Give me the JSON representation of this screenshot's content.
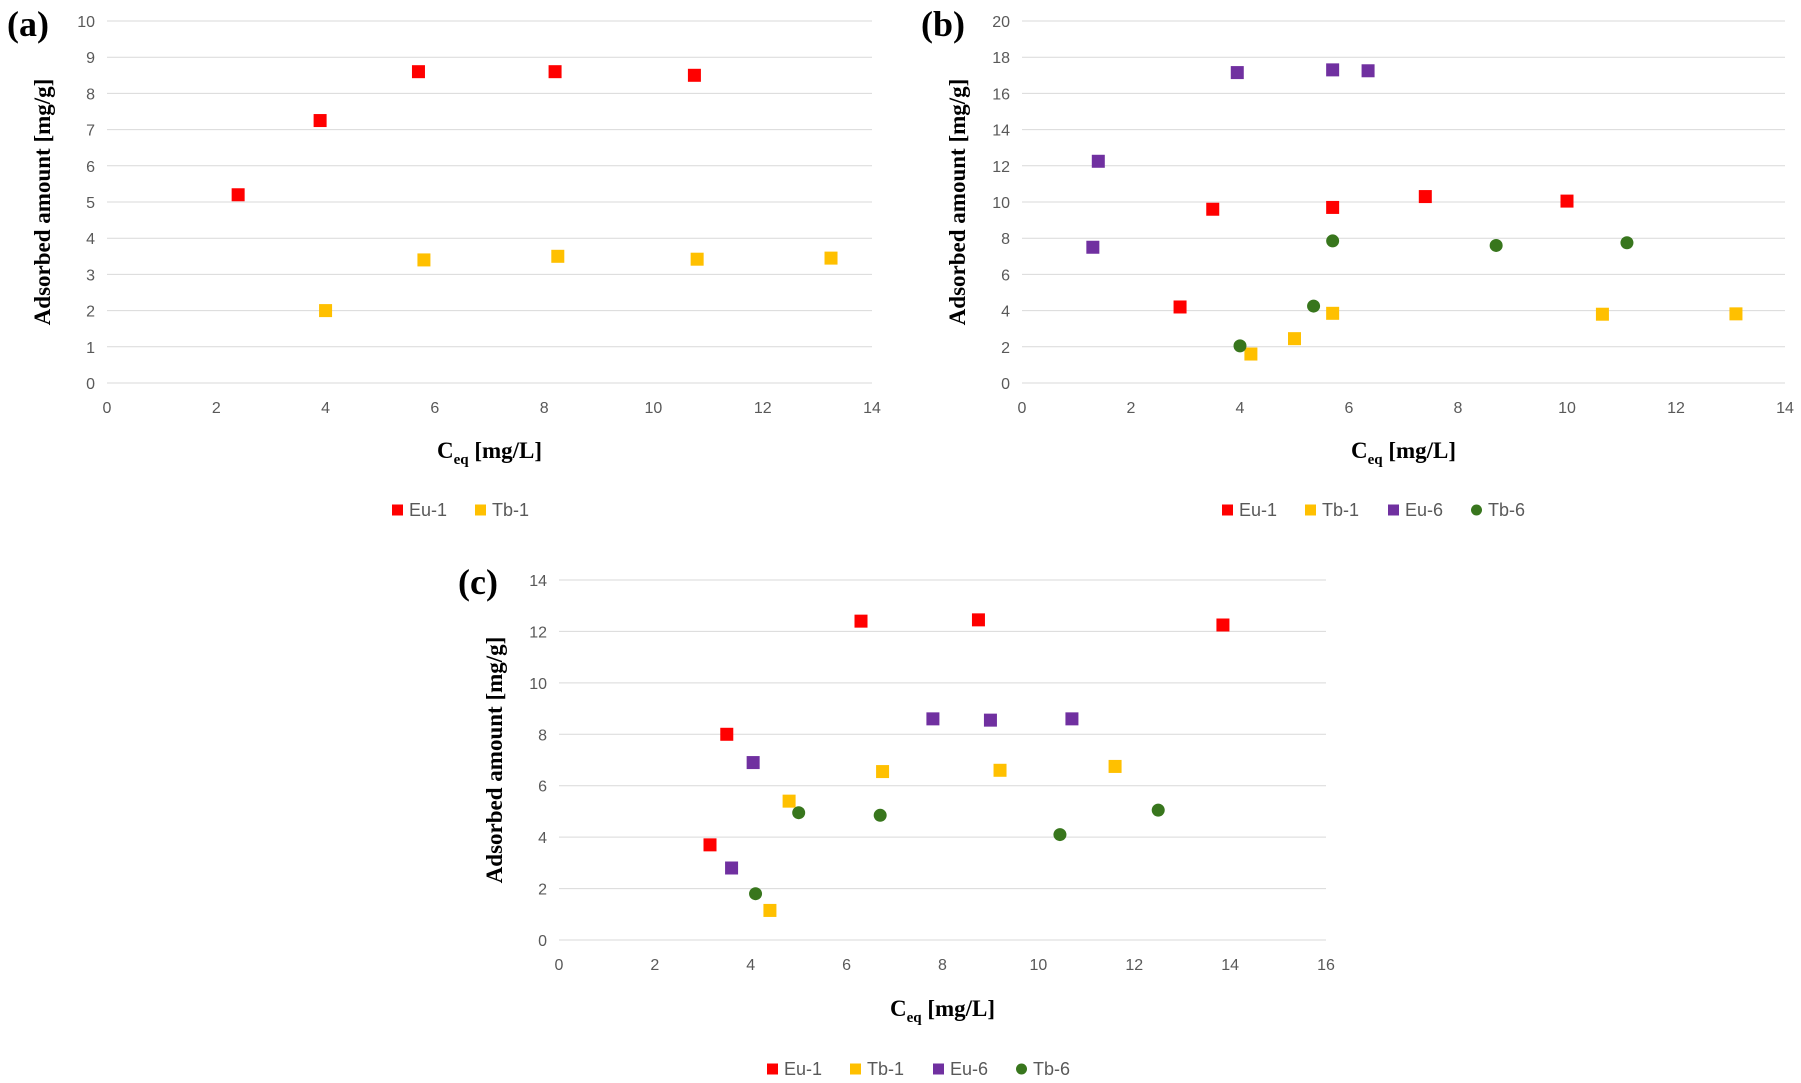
{
  "colors": {
    "Eu-1": "#ff0000",
    "Tb-1": "#ffc000",
    "Eu-6": "#7030a0",
    "Tb-6": "#38761d"
  },
  "chart_data": [
    {
      "type": "scatter",
      "panel_label": "(a)",
      "title": "",
      "xlabel": "C",
      "xlabel_sub": "eq",
      "xlabel_tail": " [mg/L]",
      "ylabel": "Adsorbed amount [mg/g]",
      "xlim": [
        0,
        14
      ],
      "ylim": [
        0,
        10
      ],
      "xticks": [
        "0",
        "2",
        "4",
        "6",
        "8",
        "10",
        "12",
        "14"
      ],
      "yticks": [
        "0",
        "1",
        "2",
        "3",
        "4",
        "5",
        "6",
        "7",
        "8",
        "9",
        "10"
      ],
      "grid": true,
      "legend_position": "bottom",
      "legend": [
        "Eu-1",
        "Tb-1"
      ],
      "series": [
        {
          "name": "Eu-1",
          "marker": "square",
          "x": [
            2.4,
            3.9,
            5.7,
            8.2,
            10.75
          ],
          "y": [
            5.2,
            7.25,
            8.6,
            8.6,
            8.5
          ]
        },
        {
          "name": "Tb-1",
          "marker": "square",
          "x": [
            4.0,
            5.8,
            8.25,
            10.8,
            13.25
          ],
          "y": [
            2.0,
            3.4,
            3.5,
            3.42,
            3.45
          ]
        }
      ]
    },
    {
      "type": "scatter",
      "panel_label": "(b)",
      "title": "",
      "xlabel": "C",
      "xlabel_sub": "eq",
      "xlabel_tail": " [mg/L]",
      "ylabel": "Adsorbed amount [mg/g]",
      "xlim": [
        0,
        14
      ],
      "ylim": [
        0,
        20
      ],
      "xticks": [
        "0",
        "2",
        "4",
        "6",
        "8",
        "10",
        "12",
        "14"
      ],
      "yticks": [
        "0",
        "2",
        "4",
        "6",
        "8",
        "10",
        "12",
        "14",
        "16",
        "18",
        "20"
      ],
      "grid": true,
      "legend_position": "bottom",
      "legend": [
        "Eu-1",
        "Tb-1",
        "Eu-6",
        "Tb-6"
      ],
      "series": [
        {
          "name": "Eu-1",
          "marker": "square",
          "x": [
            2.9,
            3.5,
            5.7,
            7.4,
            10.0
          ],
          "y": [
            4.2,
            9.6,
            9.7,
            10.3,
            10.05
          ]
        },
        {
          "name": "Tb-1",
          "marker": "square",
          "x": [
            4.2,
            5.0,
            5.7,
            10.65,
            13.1
          ],
          "y": [
            1.6,
            2.45,
            3.85,
            3.8,
            3.82
          ]
        },
        {
          "name": "Eu-6",
          "marker": "square",
          "x": [
            1.3,
            1.4,
            3.95,
            5.7,
            6.35
          ],
          "y": [
            7.5,
            12.25,
            17.15,
            17.3,
            17.25
          ]
        },
        {
          "name": "Tb-6",
          "marker": "circle",
          "x": [
            4.0,
            5.35,
            5.7,
            8.7,
            11.1
          ],
          "y": [
            2.05,
            4.25,
            7.85,
            7.6,
            7.75
          ]
        }
      ]
    },
    {
      "type": "scatter",
      "panel_label": "(c)",
      "title": "",
      "xlabel": "C",
      "xlabel_sub": "eq",
      "xlabel_tail": " [mg/L]",
      "ylabel": "Adsorbed amount [mg/g]",
      "xlim": [
        0,
        16
      ],
      "ylim": [
        0,
        14
      ],
      "xticks": [
        "0",
        "2",
        "4",
        "6",
        "8",
        "10",
        "12",
        "14",
        "16"
      ],
      "yticks": [
        "0",
        "2",
        "4",
        "6",
        "8",
        "10",
        "12",
        "14"
      ],
      "grid": true,
      "legend_position": "bottom",
      "legend": [
        "Eu-1",
        "Tb-1",
        "Eu-6",
        "Tb-6"
      ],
      "series": [
        {
          "name": "Eu-1",
          "marker": "square",
          "x": [
            3.15,
            3.5,
            6.3,
            8.75,
            13.85
          ],
          "y": [
            3.7,
            8.0,
            12.4,
            12.45,
            12.25
          ]
        },
        {
          "name": "Tb-1",
          "marker": "square",
          "x": [
            4.4,
            4.8,
            6.75,
            9.2,
            11.6
          ],
          "y": [
            1.15,
            5.4,
            6.55,
            6.6,
            6.75
          ]
        },
        {
          "name": "Eu-6",
          "marker": "square",
          "x": [
            3.6,
            4.05,
            7.8,
            9.0,
            10.7
          ],
          "y": [
            2.8,
            6.9,
            8.6,
            8.55,
            8.6
          ]
        },
        {
          "name": "Tb-6",
          "marker": "circle",
          "x": [
            4.1,
            5.0,
            6.7,
            10.45,
            12.5
          ],
          "y": [
            1.8,
            4.95,
            4.85,
            4.1,
            5.05
          ]
        }
      ]
    }
  ]
}
